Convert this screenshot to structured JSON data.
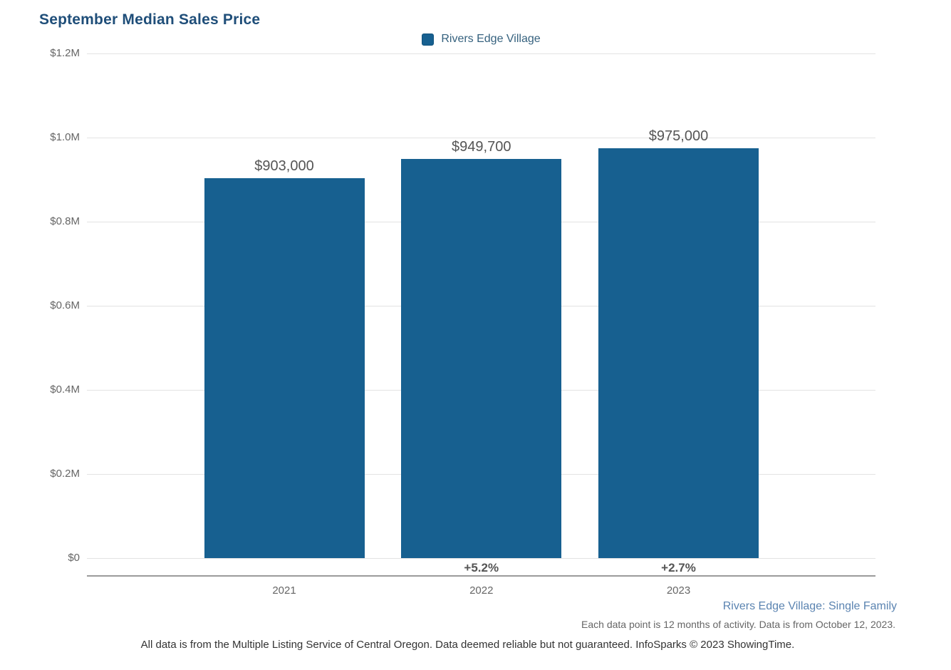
{
  "title": "September Median Sales Price",
  "legend": {
    "label": "Rivers Edge Village"
  },
  "colors": {
    "title": "#1f4e79",
    "bar": "#176090",
    "legend_text": "#35617e",
    "value_label": "#555555",
    "pct_label": "#555555",
    "tick_label": "#666666",
    "x_label": "#666666",
    "gridline": "#e3e3e3",
    "axis_line": "#9b9b9b",
    "footer_scope": "#5b84b1",
    "footer_note": "#666666",
    "disclaimer": "#333333"
  },
  "chart_data": {
    "type": "bar",
    "title": "September Median Sales Price",
    "series_name": "Rivers Edge Village",
    "categories": [
      "2021",
      "2022",
      "2023"
    ],
    "values": [
      903000,
      949700,
      975000
    ],
    "value_labels": [
      "$903,000",
      "$949,700",
      "$975,000"
    ],
    "pct_changes": [
      "",
      "+5.2%",
      "+2.7%"
    ],
    "y_ticks": [
      {
        "label": "$1.2M",
        "value": 1200000
      },
      {
        "label": "$1.0M",
        "value": 1000000
      },
      {
        "label": "$0.8M",
        "value": 800000
      },
      {
        "label": "$0.6M",
        "value": 600000
      },
      {
        "label": "$0.4M",
        "value": 400000
      },
      {
        "label": "$0.2M",
        "value": 200000
      },
      {
        "label": "$0",
        "value": 0
      }
    ],
    "ylim": [
      0,
      1200000
    ],
    "grid": true,
    "legend_position": "top-center"
  },
  "footer": {
    "series_scope": "Rivers Edge Village: Single Family",
    "data_note": "Each data point is 12 months of activity. Data is from October 12, 2023.",
    "disclaimer": "All data is from the Multiple Listing Service of Central Oregon. Data deemed reliable but not guaranteed. InfoSparks © 2023 ShowingTime."
  }
}
